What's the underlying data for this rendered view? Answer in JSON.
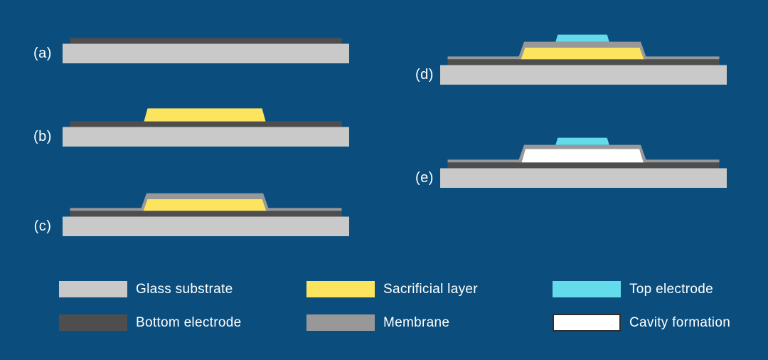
{
  "colors": {
    "background": "#0B4E7E",
    "text": "#FFFFFF",
    "glass_substrate": "#C9C9C9",
    "bottom_electrode": "#4E4E4E",
    "sacrificial_layer": "#FDE45F",
    "membrane": "#989898",
    "top_electrode": "#63DBEB",
    "cavity": "#FFFFFF",
    "cavity_border": "#2E2E2E"
  },
  "steps": [
    {
      "label": "(a)",
      "layers": [
        "glass_substrate",
        "bottom_electrode"
      ]
    },
    {
      "label": "(b)",
      "layers": [
        "glass_substrate",
        "bottom_electrode",
        "sacrificial_layer"
      ]
    },
    {
      "label": "(c)",
      "layers": [
        "glass_substrate",
        "bottom_electrode",
        "membrane",
        "sacrificial_layer"
      ]
    },
    {
      "label": "(d)",
      "layers": [
        "glass_substrate",
        "bottom_electrode",
        "membrane",
        "sacrificial_layer",
        "top_electrode"
      ]
    },
    {
      "label": "(e)",
      "layers": [
        "glass_substrate",
        "bottom_electrode",
        "membrane",
        "cavity",
        "top_electrode"
      ]
    }
  ],
  "legend": {
    "items": [
      {
        "label": "Glass substrate",
        "color_key": "glass_substrate"
      },
      {
        "label": "Bottom electrode",
        "color_key": "bottom_electrode"
      },
      {
        "label": "Sacrificial layer",
        "color_key": "sacrificial_layer"
      },
      {
        "label": "Membrane",
        "color_key": "membrane"
      },
      {
        "label": "Top electrode",
        "color_key": "top_electrode"
      },
      {
        "label": "Cavity formation",
        "color_key": "cavity"
      }
    ]
  }
}
